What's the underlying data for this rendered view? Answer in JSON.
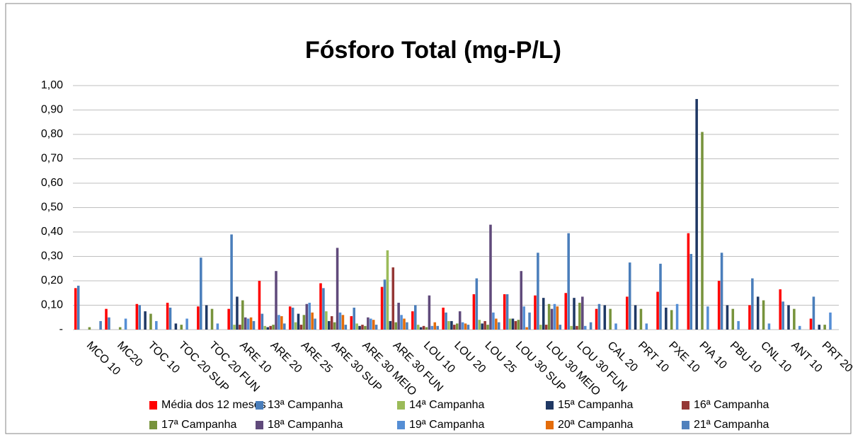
{
  "chart_data": {
    "type": "bar",
    "title": "Fósforo Total (mg-P/L)",
    "categories": [
      "MCO 10",
      "MC20",
      "TOC 10",
      "TOC 20 SUP",
      "TOC 20 FUN",
      "ARE 10",
      "ARE 20",
      "ARE 25",
      "ARE 30 SUP",
      "ARE 30 MEIO",
      "ARE 30 FUN",
      "LOU 10",
      "LOU 20",
      "LOU 25",
      "LOU 30 SUP",
      "LOU 30 MEIO",
      "LOU 30 FUN",
      "CAL 20",
      "PRT 10",
      "PXE 10",
      "PIA 10",
      "PBU 10",
      "CNL 10",
      "ANT 10",
      "PRT 20"
    ],
    "ylim": [
      0,
      1
    ],
    "yticks": [
      {
        "value": 0,
        "label": "-"
      },
      {
        "value": 0.1,
        "label": "0,10"
      },
      {
        "value": 0.2,
        "label": "0,20"
      },
      {
        "value": 0.3,
        "label": "0,30"
      },
      {
        "value": 0.4,
        "label": "0,40"
      },
      {
        "value": 0.5,
        "label": "0,50"
      },
      {
        "value": 0.6,
        "label": "0,60"
      },
      {
        "value": 0.7,
        "label": "0,70"
      },
      {
        "value": 0.8,
        "label": "0,80"
      },
      {
        "value": 0.9,
        "label": "0,90"
      },
      {
        "value": 1,
        "label": "1,00"
      }
    ],
    "grid": true,
    "legend": "bottom",
    "series": [
      {
        "name": "Média dos 12 meses",
        "color": "#ff0000",
        "values": [
          0.17,
          0.085,
          0.105,
          0.11,
          0.095,
          0.085,
          0.2,
          0.095,
          0.19,
          0.055,
          0.175,
          0.075,
          0.09,
          0.145,
          0.145,
          0.14,
          0.15,
          0.085,
          0.135,
          0.155,
          0.395,
          0.2,
          0.1,
          0.165,
          0.045
        ]
      },
      {
        "name": "13ª Campanha",
        "color": "#4a7ebb",
        "values": [
          0.18,
          0.05,
          0.1,
          0.09,
          0.295,
          0.39,
          0.065,
          0.09,
          0.17,
          0.09,
          0.205,
          0.1,
          0.07,
          0.21,
          0.145,
          0.315,
          0.395,
          0.105,
          0.275,
          0.27,
          0.31,
          0.315,
          0.21,
          0.115,
          0.135
        ]
      },
      {
        "name": "14ª Campanha",
        "color": "#9bbb59",
        "values": [
          null,
          null,
          null,
          null,
          null,
          0.02,
          0.015,
          0.03,
          0.075,
          0.025,
          0.325,
          0.02,
          0.035,
          0.04,
          0.045,
          0.02,
          0.015,
          null,
          null,
          null,
          null,
          null,
          null,
          null,
          null
        ]
      },
      {
        "name": "15ª Campanha",
        "color": "#1f3864",
        "values": [
          null,
          null,
          0.075,
          0.025,
          0.1,
          0.135,
          0.01,
          0.065,
          0.035,
          0.015,
          0.035,
          0.01,
          0.035,
          0.025,
          0.045,
          0.13,
          0.13,
          0.1,
          0.1,
          0.09,
          0.945,
          0.1,
          0.135,
          0.1,
          0.02
        ]
      },
      {
        "name": "16ª Campanha",
        "color": "#953735",
        "values": [
          null,
          null,
          null,
          null,
          null,
          0.02,
          0.015,
          0.02,
          0.055,
          0.02,
          0.255,
          0.015,
          0.02,
          0.035,
          0.035,
          0.02,
          0.015,
          null,
          null,
          null,
          null,
          null,
          null,
          null,
          null
        ]
      },
      {
        "name": "17ª Campanha",
        "color": "#77933c",
        "values": [
          0.01,
          0.01,
          0.065,
          0.02,
          0.085,
          0.12,
          0.02,
          0.06,
          0.03,
          0.015,
          0.03,
          0.01,
          0.025,
          0.02,
          0.04,
          0.105,
          0.11,
          0.085,
          0.085,
          0.08,
          0.81,
          0.085,
          0.12,
          0.085,
          0.02
        ]
      },
      {
        "name": "18ª Campanha",
        "color": "#604a7b",
        "values": [
          null,
          null,
          null,
          null,
          null,
          0.05,
          0.24,
          0.105,
          0.335,
          0.05,
          0.11,
          0.14,
          0.075,
          0.43,
          0.24,
          0.085,
          0.135,
          null,
          null,
          null,
          null,
          null,
          null,
          null,
          null
        ]
      },
      {
        "name": "19ª Campanha",
        "color": "#558ed5",
        "values": [
          null,
          0.045,
          0.035,
          0.045,
          0.025,
          0.045,
          0.06,
          0.11,
          0.07,
          0.045,
          0.06,
          0.015,
          0.03,
          0.07,
          0.095,
          0.105,
          0.015,
          0.025,
          0.025,
          0.105,
          0.095,
          0.035,
          0.025,
          0.015,
          0.07
        ]
      },
      {
        "name": "20ª Campanha",
        "color": "#e46c0a",
        "values": [
          null,
          null,
          null,
          null,
          null,
          0.05,
          0.055,
          0.07,
          0.06,
          0.04,
          0.045,
          0.03,
          0.025,
          0.045,
          0.01,
          0.095,
          null,
          null,
          null,
          null,
          null,
          null,
          null,
          null,
          null
        ]
      },
      {
        "name": "21ª Campanha",
        "color": "#4f81bd",
        "values": [
          0.035,
          null,
          null,
          null,
          null,
          0.035,
          0.025,
          0.045,
          0.02,
          0.02,
          0.03,
          0.015,
          0.02,
          0.03,
          0.07,
          0.02,
          0.03,
          null,
          null,
          null,
          null,
          null,
          null,
          null,
          null
        ]
      }
    ]
  }
}
